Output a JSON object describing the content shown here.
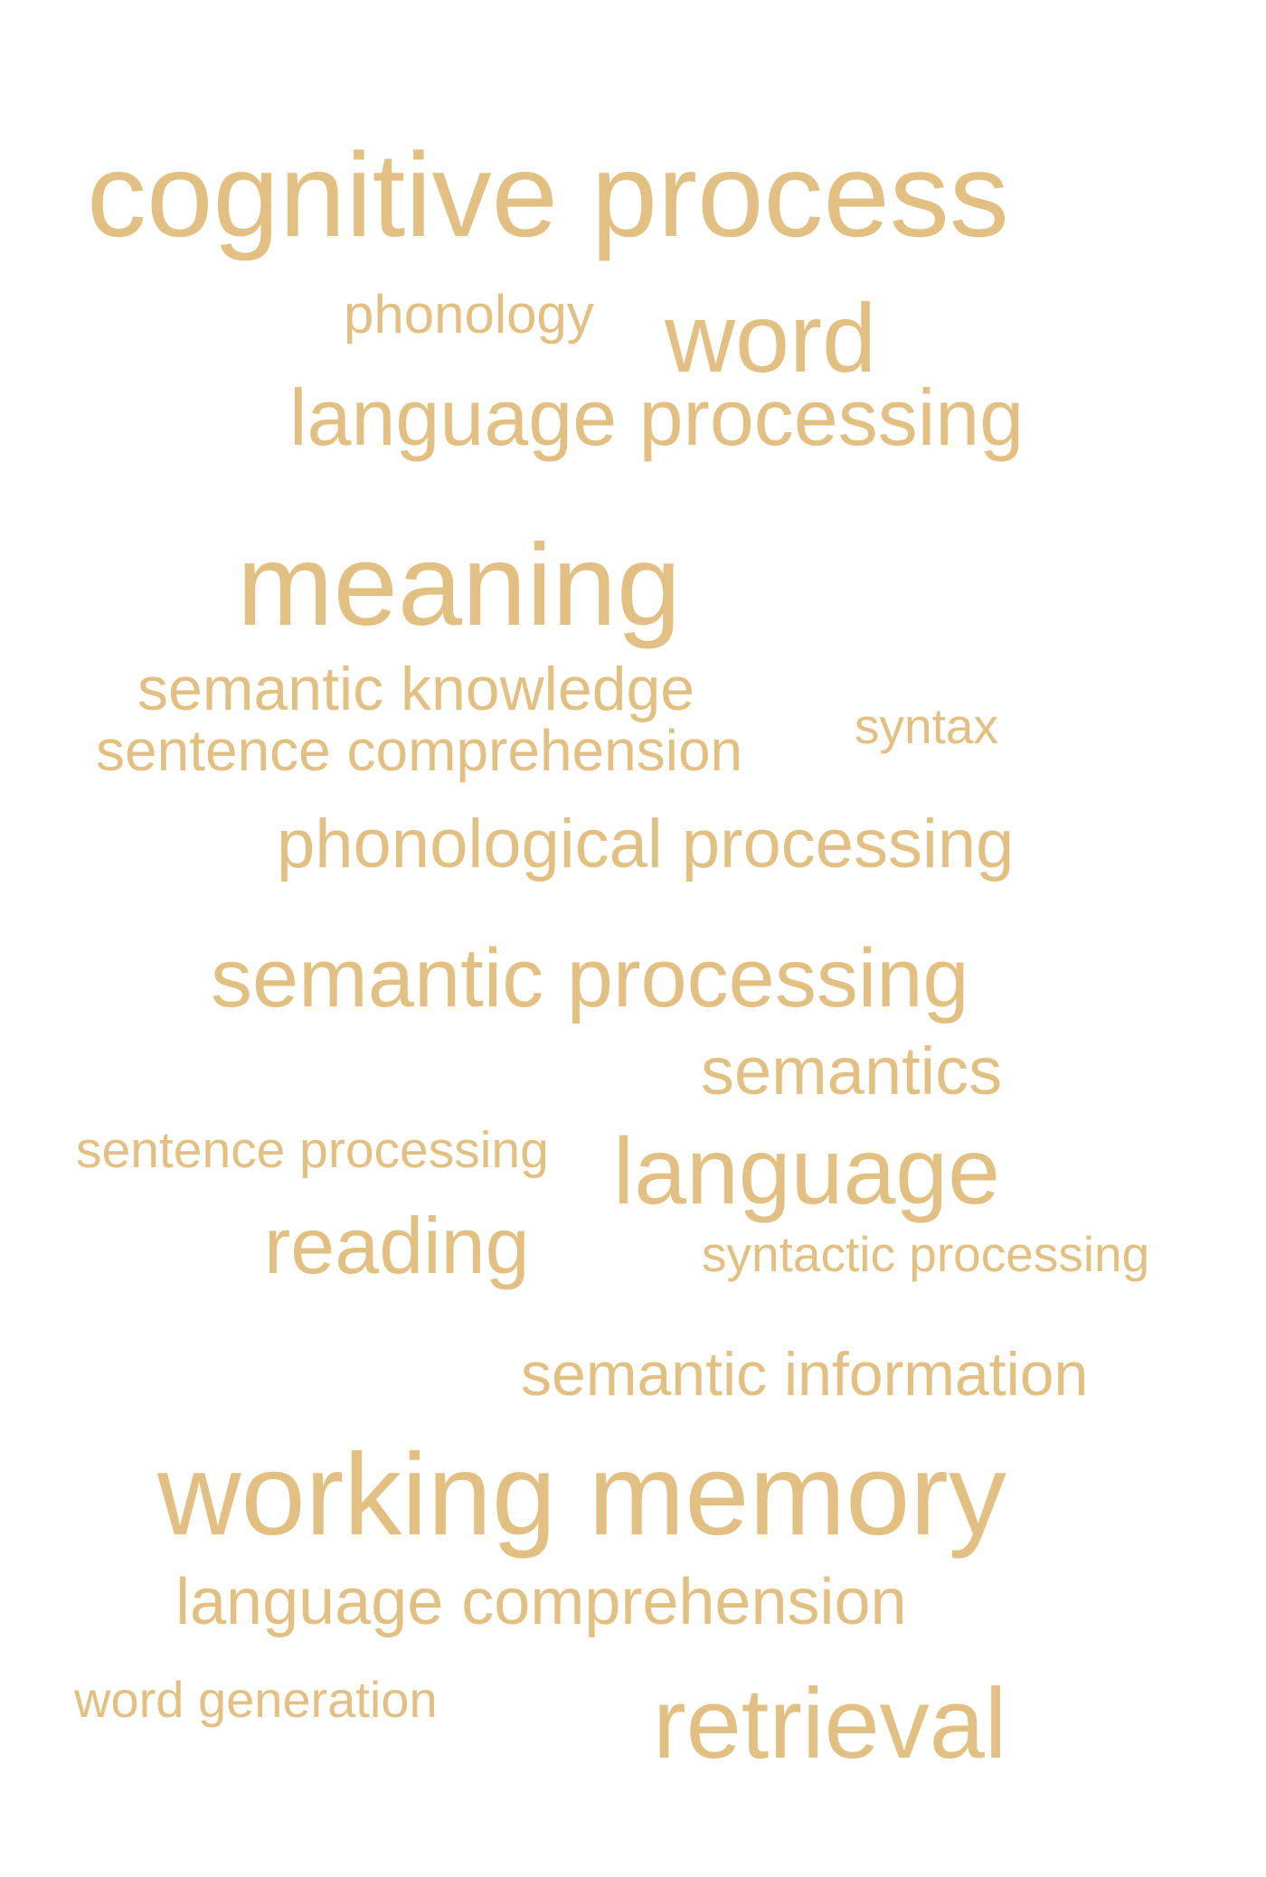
{
  "word_cloud": {
    "color": "#e2c083",
    "terms": [
      "cognitive process",
      "phonology",
      "word",
      "language processing",
      "meaning",
      "semantic knowledge",
      "sentence comprehension",
      "syntax",
      "phonological processing",
      "semantic processing",
      "semantics",
      "sentence processing",
      "language",
      "reading",
      "syntactic processing",
      "semantic information",
      "working memory",
      "language comprehension",
      "word generation",
      "retrieval"
    ]
  }
}
